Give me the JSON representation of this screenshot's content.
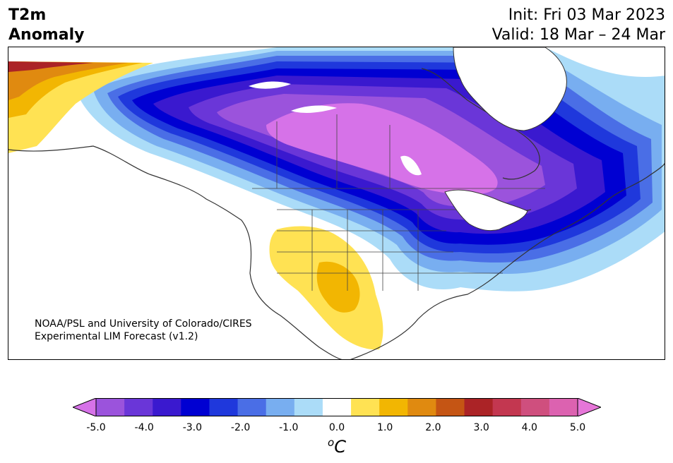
{
  "title": {
    "left_line1": "T2m",
    "left_line2": "Anomaly",
    "init": "Init: Fri 03 Mar 2023",
    "valid": "Valid: 18 Mar – 24 Mar"
  },
  "credit": {
    "line1": "NOAA/PSL and University of Colorado/CIRES",
    "line2": "Experimental LIM Forecast (v1.2)"
  },
  "colorbar": {
    "tick_labels": [
      "-5.0",
      "-4.0",
      "-3.0",
      "-2.0",
      "-1.0",
      "0.0",
      "1.0",
      "2.0",
      "3.0",
      "4.0",
      "5.0"
    ],
    "unit_sup": "o",
    "unit_base": "C",
    "colors": [
      "#d672e8",
      "#9b53dc",
      "#6a36d8",
      "#3a19cf",
      "#0000d2",
      "#1f38dc",
      "#4a6ee6",
      "#78aef0",
      "#abdcf8",
      "#ffffff",
      "#ffe253",
      "#f2b602",
      "#e08a10",
      "#c55514",
      "#ab2326",
      "#c33750",
      "#cf4f7e",
      "#dc62b0",
      "#e676d8"
    ]
  },
  "colors": {
    "land_border": "#333333",
    "water": "#ffffff"
  }
}
